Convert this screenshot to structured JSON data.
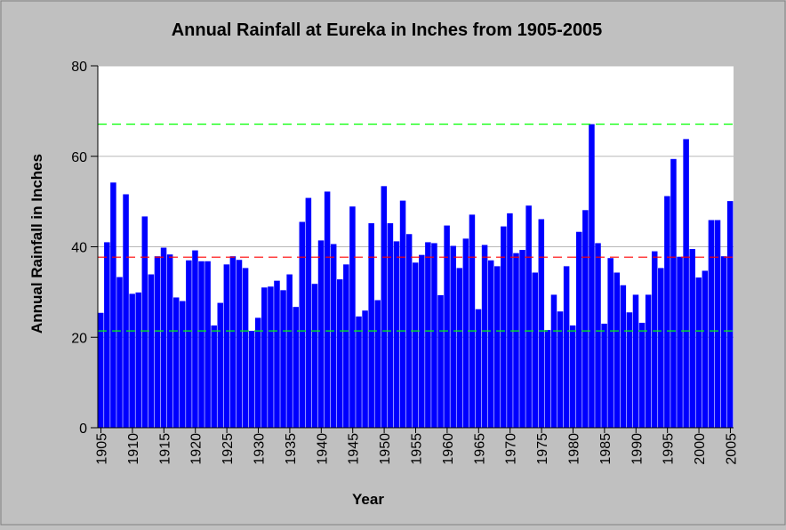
{
  "chart_data": {
    "type": "bar",
    "title": "Annual Rainfall at Eureka in Inches from 1905-2005",
    "xlabel": "Year",
    "ylabel": "Annual Rainfall in Inches",
    "ylim": [
      0,
      80
    ],
    "yticks": [
      0,
      20,
      40,
      60,
      80
    ],
    "xticks": [
      1905,
      1910,
      1915,
      1920,
      1925,
      1930,
      1935,
      1940,
      1945,
      1950,
      1955,
      1960,
      1965,
      1970,
      1975,
      1980,
      1985,
      1990,
      1995,
      2000,
      2005
    ],
    "grid": true,
    "bar_color": "#0000ff",
    "background": "#c0c0c0",
    "plot_background": "#ffffff",
    "x": [
      1905,
      1906,
      1907,
      1908,
      1909,
      1910,
      1911,
      1912,
      1913,
      1914,
      1915,
      1916,
      1917,
      1918,
      1919,
      1920,
      1921,
      1922,
      1923,
      1924,
      1925,
      1926,
      1927,
      1928,
      1929,
      1930,
      1931,
      1932,
      1933,
      1934,
      1935,
      1936,
      1937,
      1938,
      1939,
      1940,
      1941,
      1942,
      1943,
      1944,
      1945,
      1946,
      1947,
      1948,
      1949,
      1950,
      1951,
      1952,
      1953,
      1954,
      1955,
      1956,
      1957,
      1958,
      1959,
      1960,
      1961,
      1962,
      1963,
      1964,
      1965,
      1966,
      1967,
      1968,
      1969,
      1970,
      1971,
      1972,
      1973,
      1974,
      1975,
      1976,
      1977,
      1978,
      1979,
      1980,
      1981,
      1982,
      1983,
      1984,
      1985,
      1986,
      1987,
      1988,
      1989,
      1990,
      1991,
      1992,
      1993,
      1994,
      1995,
      1996,
      1997,
      1998,
      1999,
      2000,
      2001,
      2002,
      2003,
      2004,
      2005
    ],
    "values": [
      25.4,
      41.0,
      54.2,
      33.3,
      51.6,
      29.6,
      29.9,
      46.7,
      33.9,
      37.9,
      39.8,
      38.3,
      28.8,
      28.0,
      37.0,
      39.2,
      36.8,
      36.8,
      22.6,
      27.6,
      36.1,
      37.9,
      37.1,
      35.3,
      21.4,
      24.3,
      31.0,
      31.2,
      32.5,
      30.4,
      33.9,
      26.7,
      45.5,
      50.8,
      31.8,
      41.4,
      52.2,
      40.6,
      32.8,
      36.1,
      48.9,
      24.6,
      25.9,
      45.2,
      28.2,
      53.4,
      45.2,
      41.2,
      50.2,
      42.8,
      36.5,
      38.2,
      41.0,
      40.8,
      29.3,
      44.7,
      40.2,
      35.3,
      41.8,
      47.1,
      26.2,
      40.4,
      37.0,
      35.7,
      44.5,
      47.4,
      38.6,
      39.3,
      49.1,
      34.3,
      46.1,
      21.6,
      29.4,
      25.7,
      35.7,
      22.6,
      43.3,
      48.1,
      67.1,
      40.8,
      23.0,
      37.5,
      34.3,
      31.5,
      25.5,
      29.4,
      23.2,
      29.4,
      39.0,
      35.3,
      51.2,
      59.4,
      37.8,
      63.8,
      39.5,
      33.2,
      34.7,
      45.9,
      45.9,
      37.9,
      50.1
    ],
    "reference_lines": [
      {
        "value": 67.1,
        "color": "#00ff00",
        "style": "dashed"
      },
      {
        "value": 37.7,
        "color": "#ff0000",
        "style": "dashed"
      },
      {
        "value": 21.4,
        "color": "#00ff00",
        "style": "dashed"
      }
    ]
  }
}
